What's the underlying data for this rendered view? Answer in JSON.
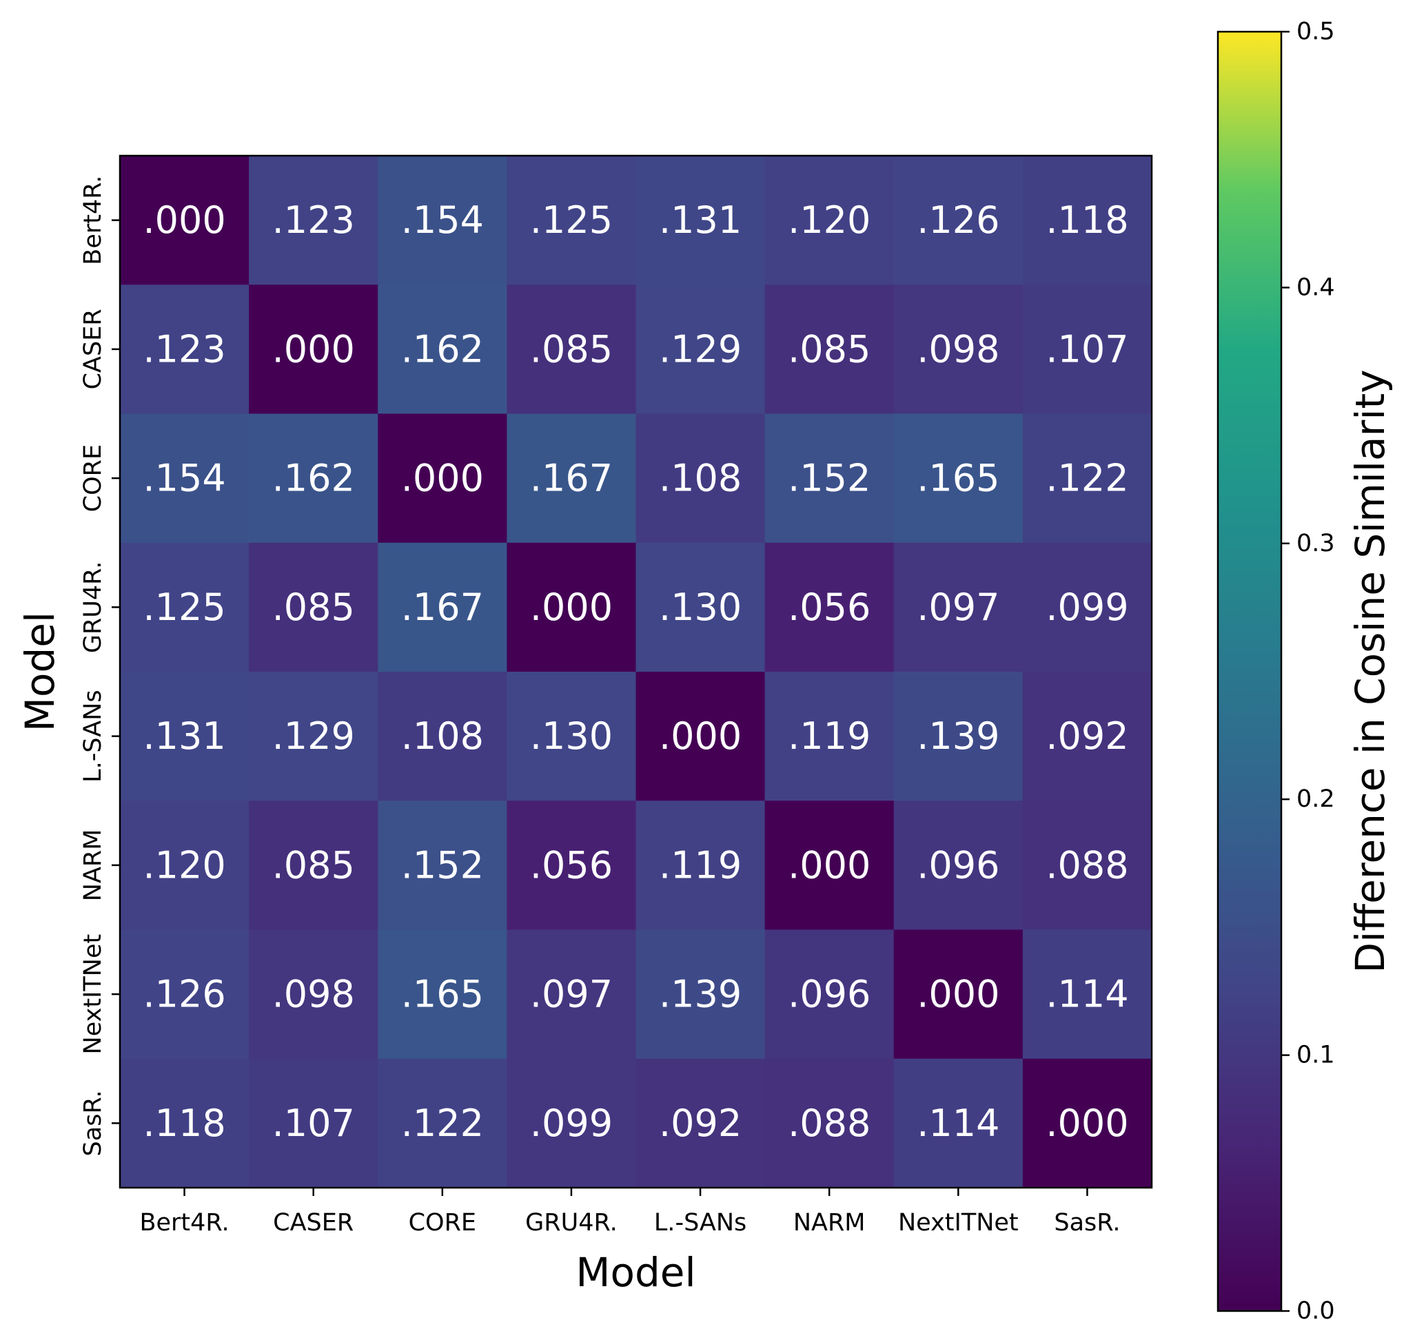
{
  "chart_data": {
    "type": "heatmap",
    "xlabel": "Model",
    "ylabel": "Model",
    "x_categories": [
      "Bert4R.",
      "CASER",
      "CORE",
      "GRU4R.",
      "L.-SANs",
      "NARM",
      "NextITNet",
      "SasR."
    ],
    "y_categories": [
      "Bert4R.",
      "CASER",
      "CORE",
      "GRU4R.",
      "L.-SANs",
      "NARM",
      "NextITNet",
      "SasR."
    ],
    "values": [
      [
        0.0,
        0.123,
        0.154,
        0.125,
        0.131,
        0.12,
        0.126,
        0.118
      ],
      [
        0.123,
        0.0,
        0.162,
        0.085,
        0.129,
        0.085,
        0.098,
        0.107
      ],
      [
        0.154,
        0.162,
        0.0,
        0.167,
        0.108,
        0.152,
        0.165,
        0.122
      ],
      [
        0.125,
        0.085,
        0.167,
        0.0,
        0.13,
        0.056,
        0.097,
        0.099
      ],
      [
        0.131,
        0.129,
        0.108,
        0.13,
        0.0,
        0.119,
        0.139,
        0.092
      ],
      [
        0.12,
        0.085,
        0.152,
        0.056,
        0.119,
        0.0,
        0.096,
        0.088
      ],
      [
        0.126,
        0.098,
        0.165,
        0.097,
        0.139,
        0.096,
        0.0,
        0.114
      ],
      [
        0.118,
        0.107,
        0.122,
        0.099,
        0.092,
        0.088,
        0.114,
        0.0
      ]
    ],
    "cell_labels": [
      [
        ".000",
        ".123",
        ".154",
        ".125",
        ".131",
        ".120",
        ".126",
        ".118"
      ],
      [
        ".123",
        ".000",
        ".162",
        ".085",
        ".129",
        ".085",
        ".098",
        ".107"
      ],
      [
        ".154",
        ".162",
        ".000",
        ".167",
        ".108",
        ".152",
        ".165",
        ".122"
      ],
      [
        ".125",
        ".085",
        ".167",
        ".000",
        ".130",
        ".056",
        ".097",
        ".099"
      ],
      [
        ".131",
        ".129",
        ".108",
        ".130",
        ".000",
        ".119",
        ".139",
        ".092"
      ],
      [
        ".120",
        ".085",
        ".152",
        ".056",
        ".119",
        ".000",
        ".096",
        ".088"
      ],
      [
        ".126",
        ".098",
        ".165",
        ".097",
        ".139",
        ".096",
        ".000",
        ".114"
      ],
      [
        ".118",
        ".107",
        ".122",
        ".099",
        ".092",
        ".088",
        ".114",
        ".000"
      ]
    ],
    "colorbar": {
      "label": "Difference in Cosine Similarity",
      "range": [
        0.0,
        0.5
      ],
      "ticks": [
        0.0,
        0.1,
        0.2,
        0.3,
        0.4,
        0.5
      ],
      "tick_labels": [
        "0.0",
        "0.1",
        "0.2",
        "0.3",
        "0.4",
        "0.5"
      ],
      "colormap": "viridis"
    }
  }
}
